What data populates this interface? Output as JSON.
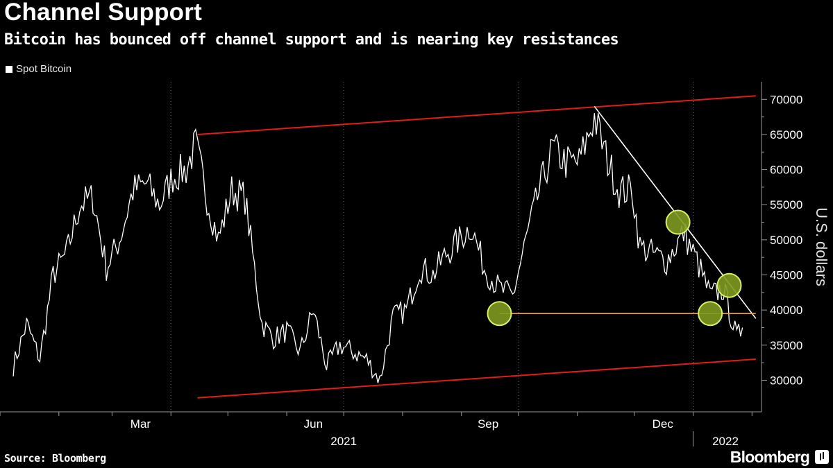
{
  "header": {
    "title": "Channel Support",
    "subtitle": "Bitcoin has bounced off channel support and is nearing key resistances"
  },
  "legend": {
    "label": "Spot Bitcoin"
  },
  "footer": {
    "source": "Source: Bloomberg",
    "brand": "Bloomberg"
  },
  "chart_data": {
    "type": "line",
    "series": [
      {
        "name": "Spot Bitcoin",
        "color": "#ffffff",
        "x": [
          "2021-01-08",
          "2021-01-15",
          "2021-01-22",
          "2021-01-29",
          "2021-02-05",
          "2021-02-12",
          "2021-02-19",
          "2021-02-26",
          "2021-03-05",
          "2021-03-12",
          "2021-03-19",
          "2021-03-26",
          "2021-04-02",
          "2021-04-09",
          "2021-04-14",
          "2021-04-20",
          "2021-04-26",
          "2021-05-03",
          "2021-05-10",
          "2021-05-19",
          "2021-05-25",
          "2021-06-01",
          "2021-06-08",
          "2021-06-15",
          "2021-06-22",
          "2021-06-29",
          "2021-07-06",
          "2021-07-13",
          "2021-07-20",
          "2021-07-27",
          "2021-08-03",
          "2021-08-10",
          "2021-08-17",
          "2021-08-24",
          "2021-08-31",
          "2021-09-06",
          "2021-09-13",
          "2021-09-21",
          "2021-09-28",
          "2021-10-05",
          "2021-10-12",
          "2021-10-19",
          "2021-10-26",
          "2021-11-02",
          "2021-11-10",
          "2021-11-16",
          "2021-11-23",
          "2021-11-30",
          "2021-12-04",
          "2021-12-11",
          "2021-12-18",
          "2021-12-27",
          "2022-01-03",
          "2022-01-10",
          "2022-01-17",
          "2022-01-24",
          "2022-01-27"
        ],
        "values": [
          32000,
          38000,
          33000,
          45000,
          48000,
          55000,
          56000,
          46000,
          50000,
          57000,
          58000,
          55000,
          59000,
          60000,
          63500,
          56000,
          50000,
          57000,
          56000,
          38000,
          36000,
          37000,
          34000,
          40000,
          32000,
          35000,
          34000,
          33000,
          30000,
          39000,
          40000,
          46000,
          45000,
          48000,
          50000,
          52000,
          46000,
          43000,
          42000,
          50000,
          57000,
          63000,
          61000,
          61000,
          67500,
          62000,
          57000,
          57000,
          49000,
          48000,
          47000,
          51000,
          47000,
          42000,
          43000,
          36000,
          37500
        ]
      }
    ],
    "annotations": {
      "upper_channel": {
        "from": [
          "2021-04-15",
          65000
        ],
        "to": [
          "2022-02-03",
          70500
        ],
        "color": "#e21b1b"
      },
      "lower_channel": {
        "from": [
          "2021-04-15",
          27500
        ],
        "to": [
          "2022-02-03",
          33000
        ],
        "color": "#e21b1b"
      },
      "descending_resistance": {
        "from": [
          "2021-11-10",
          69000
        ],
        "to": [
          "2022-02-03",
          38800
        ],
        "color": "#ffffff"
      },
      "horizontal_support": {
        "from": [
          "2021-09-21",
          39500
        ],
        "to": [
          "2022-02-03",
          39500
        ],
        "color": "#e8a33d"
      },
      "circles": [
        {
          "x": "2021-09-21",
          "y": 39500
        },
        {
          "x": "2021-12-24",
          "y": 52500
        },
        {
          "x": "2022-01-10",
          "y": 39500
        },
        {
          "x": "2022-01-20",
          "y": 43500
        }
      ]
    },
    "x_month_labels": [
      "Mar",
      "Jun",
      "Sep",
      "Dec"
    ],
    "x_year_labels": [
      "2021",
      "2022"
    ],
    "y_ticks": [
      30000,
      35000,
      40000,
      45000,
      50000,
      55000,
      60000,
      65000,
      70000
    ],
    "ylabel": "U.S. dollars",
    "ylim": [
      25500,
      72500
    ],
    "xlim": [
      "2021-01-01",
      "2022-02-06"
    ],
    "y_axis_position": "right",
    "grid": "vertical-dotted"
  }
}
